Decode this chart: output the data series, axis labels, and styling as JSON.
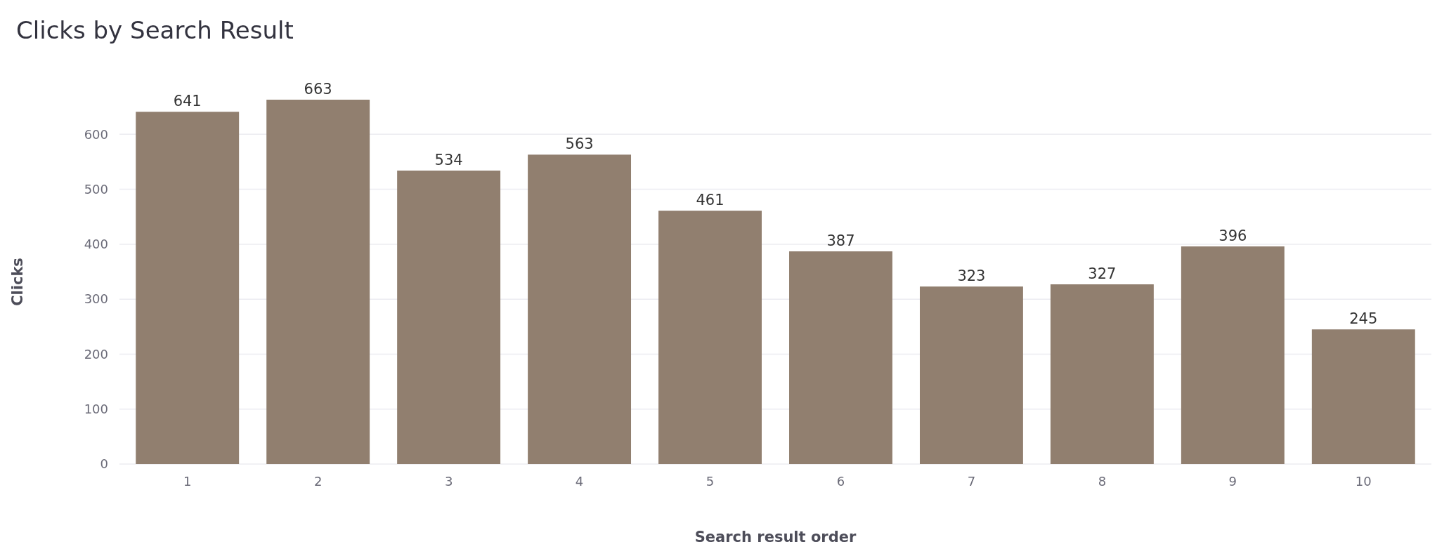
{
  "chart_data": {
    "type": "bar",
    "title": "Clicks by Search Result",
    "xlabel": "Search result order",
    "ylabel": "Clicks",
    "categories": [
      "1",
      "2",
      "3",
      "4",
      "5",
      "6",
      "7",
      "8",
      "9",
      "10"
    ],
    "values": [
      641,
      663,
      534,
      563,
      461,
      387,
      323,
      327,
      396,
      245
    ],
    "color": "#917f6f",
    "ylim": [
      0,
      663
    ],
    "yticks": [
      0,
      100,
      200,
      300,
      400,
      500,
      600
    ],
    "grid": "y",
    "data_labels": true
  }
}
